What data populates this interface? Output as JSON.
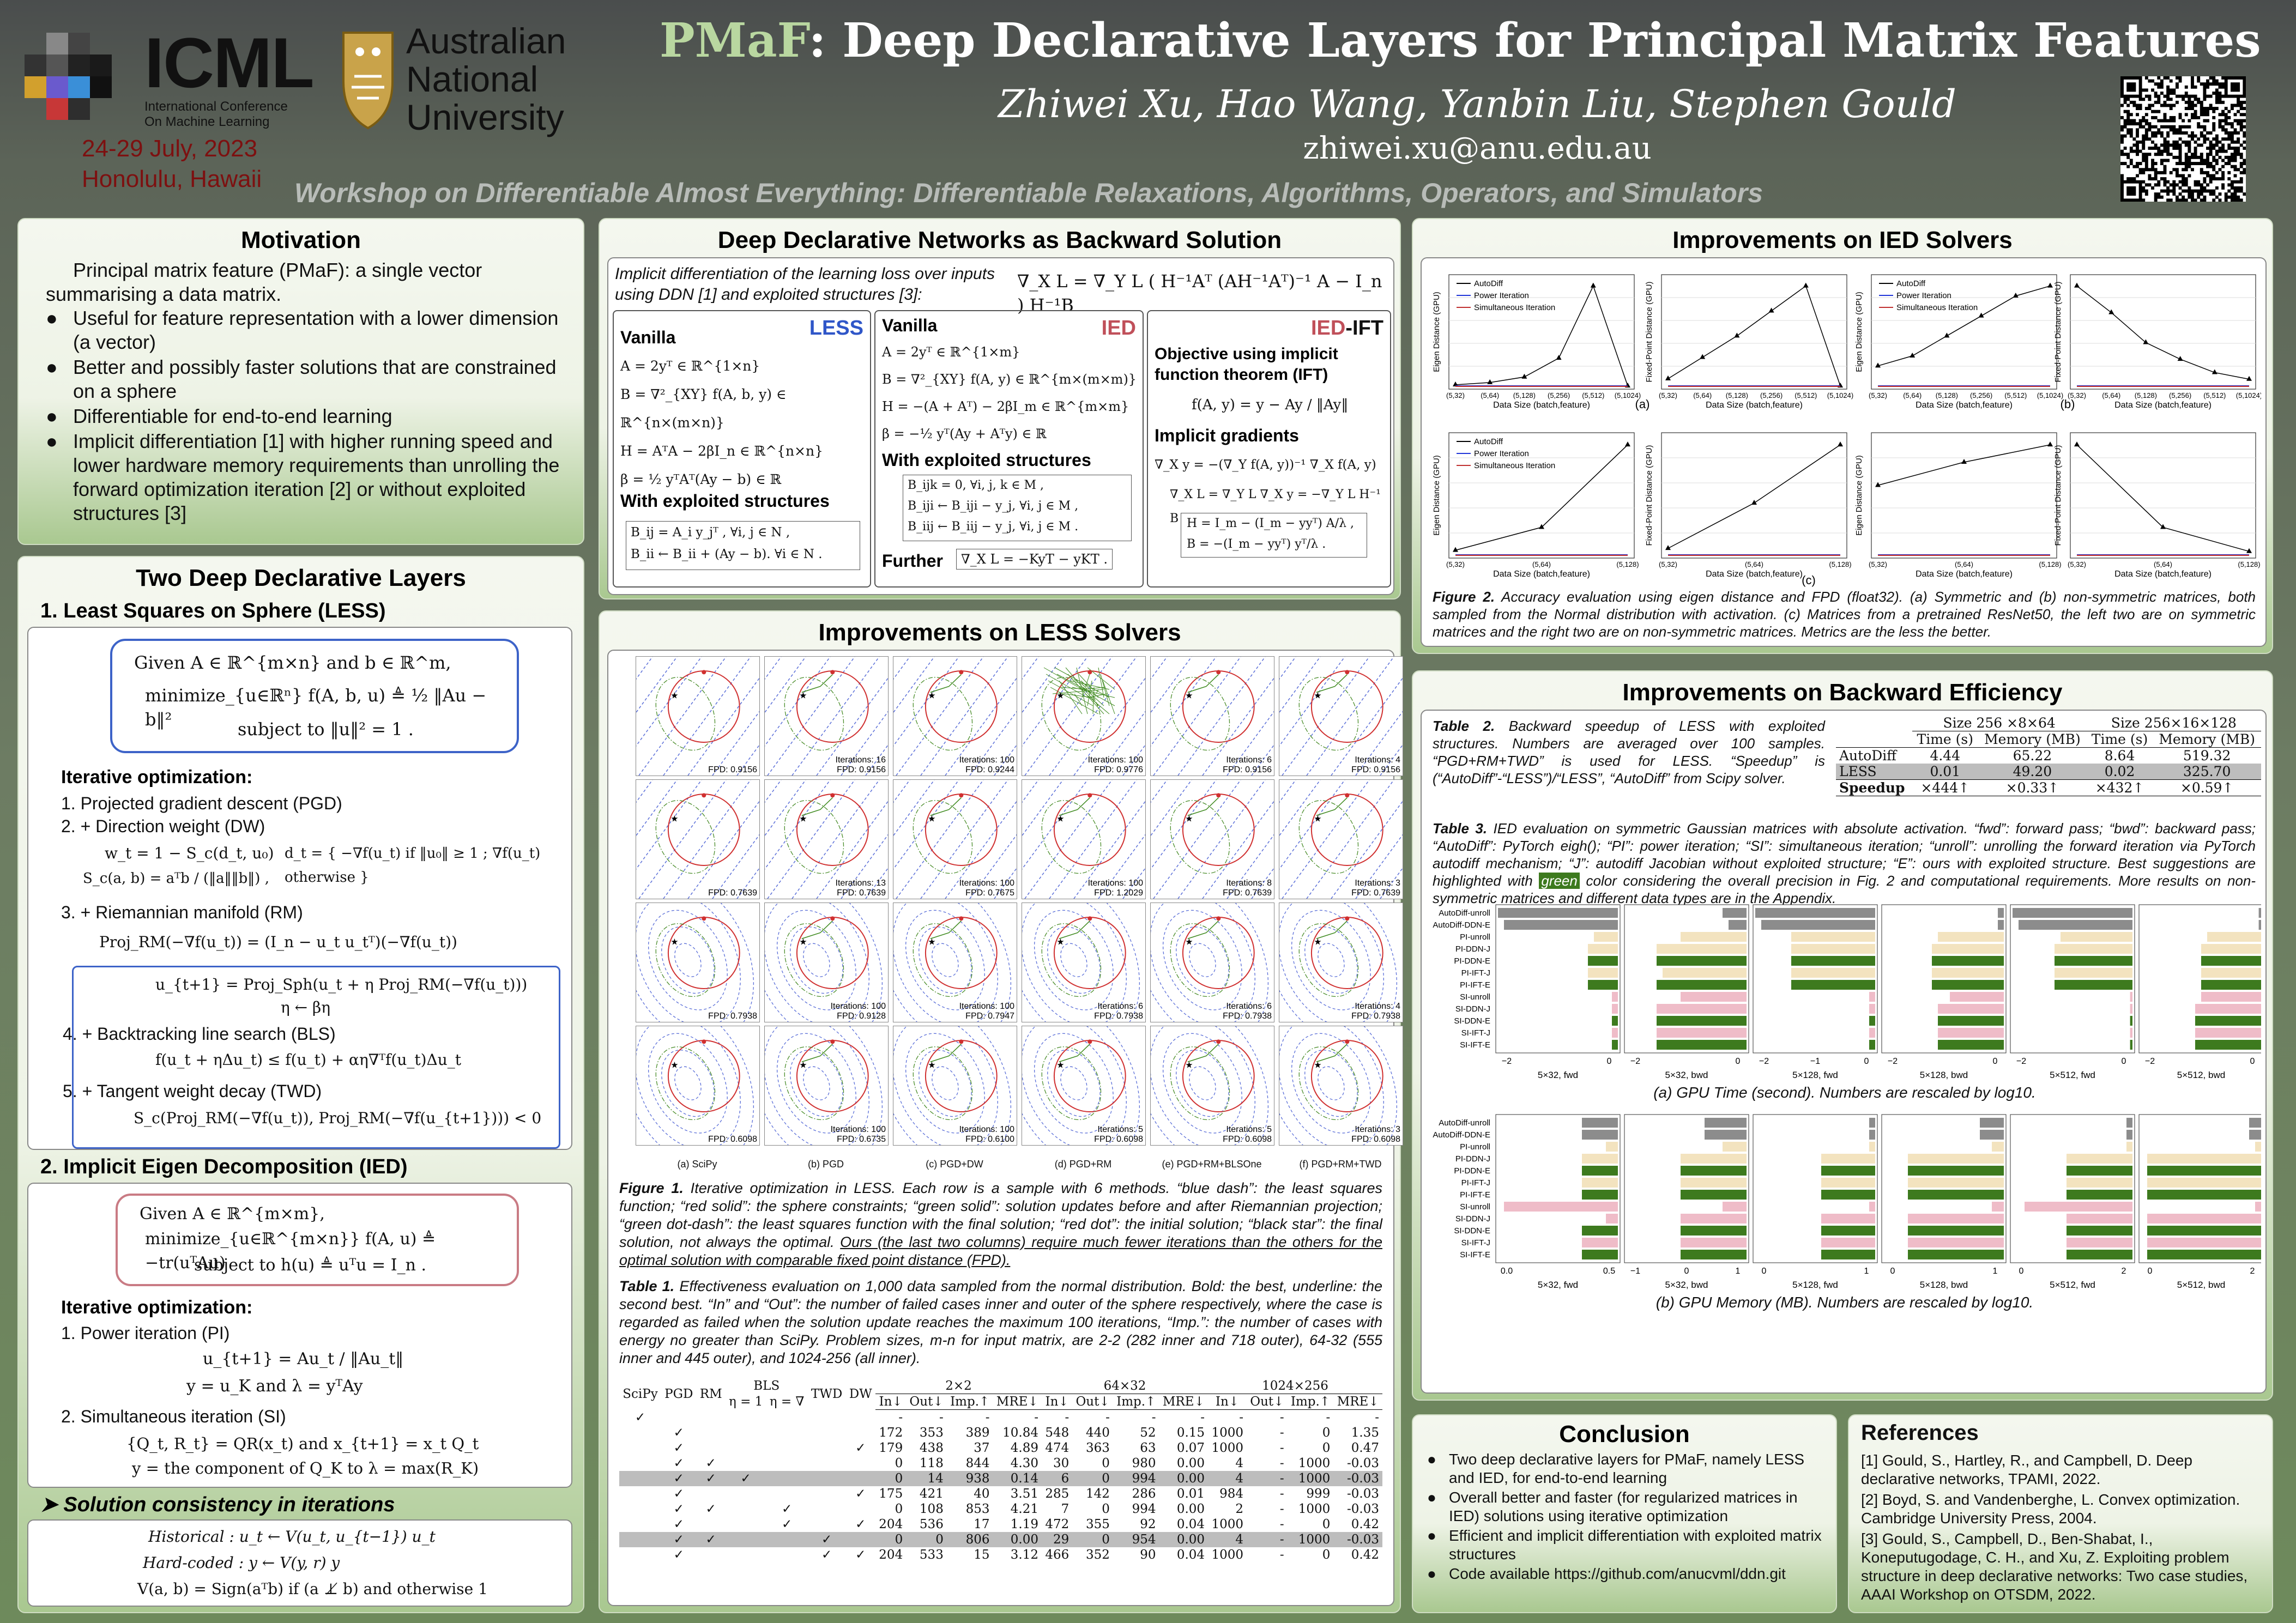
{
  "header": {
    "logo_icml_text": "ICML",
    "logo_icml_sub1": "International Conference",
    "logo_icml_sub2": "On Machine Learning",
    "logo_anu_1": "Australian",
    "logo_anu_2": "National",
    "logo_anu_3": "University",
    "date_line": "24-29 July, 2023",
    "place_line": "Honolulu, Hawaii",
    "title_accent": "PMaF",
    "title_rest": ": Deep Declarative Layers for Principal Matrix Features",
    "authors": "Zhiwei Xu, Hao Wang, Yanbin Liu, Stephen Gould",
    "email": "zhiwei.xu@anu.edu.au",
    "workshop": "Workshop on Differentiable Almost Everything: Differentiable Relaxations, Algorithms, Operators, and Simulators"
  },
  "motivation": {
    "title": "Motivation",
    "intro": "Principal matrix feature (PMaF): a single vector summarising a data matrix.",
    "bullets": [
      "Useful for feature representation with a lower dimension (a vector)",
      "Better and possibly faster solutions that are constrained on a sphere",
      "Differentiable for end-to-end learning",
      "Implicit differentiation [1] with higher running speed and lower hardware memory requirements than unrolling the forward optimization iteration [2] or without exploited structures [3]"
    ]
  },
  "two_layers": {
    "title": "Two Deep Declarative Layers",
    "less_heading": "1.  Least Squares on Sphere (LESS)",
    "less_given": "Given A ∈ ℝ^{m×n} and b ∈ ℝ^m,",
    "less_min": "minimize_{u∈ℝⁿ} f(A, b, u) ≜ ½ ‖Au − b‖²",
    "less_st": "subject to  ‖u‖² = 1 .",
    "iter_heading": "Iterative optimization:",
    "less_steps": [
      "1.  Projected gradient descent (PGD)",
      "2.  + Direction weight (DW)",
      "3.  + Riemannian manifold (RM)",
      "4.  + Backtracking line search (BLS)",
      "5.  + Tangent weight decay (TWD)"
    ],
    "eq_dw1": "w_t = 1 − S_c(d_t, u₀)",
    "eq_dw2": "S_c(a, b) = aᵀb / (‖a‖‖b‖) ,",
    "eq_dw3": "d_t = { −∇f(u_t)   if ‖u₀‖ ≥ 1 ;  ∇f(u_t)   otherwise }",
    "eq_rm": "Proj_RM(−∇f(u_t)) = (I_n − u_t u_tᵀ)(−∇f(u_t))",
    "eq_upd1": "u_{t+1} = Proj_Sph(u_t + η Proj_RM(−∇f(u_t)))",
    "eq_upd2": "η ← βη",
    "eq_bls": "f(u_t + ηΔu_t) ≤ f(u_t) + αη∇ᵀf(u_t)Δu_t",
    "eq_twd": "S_c(Proj_RM(−∇f(u_t)), Proj_RM(−∇f(u_{t+1}))) < 0",
    "ied_heading": "2. Implicit Eigen Decomposition (IED)",
    "ied_given": "Given A ∈ ℝ^{m×m},",
    "ied_min": "minimize_{u∈ℝ^{m×n}} f(A, u) ≜ −tr(uᵀAu)",
    "ied_st": "subject to   h(u) ≜ uᵀu = I_n .",
    "ied_steps": [
      "1.  Power iteration (PI)",
      "2.  Simultaneous iteration (SI)"
    ],
    "eq_pi1": "u_{t+1} = Au_t / ‖Au_t‖",
    "eq_pi2": "y = u_K    and    λ = yᵀAy",
    "eq_si1": "{Q_t, R_t} = QR(x_t)   and   x_{t+1} = x_t Q_t",
    "eq_si2": "y = the component of Q_K to λ = max(R_K)",
    "consistency_heading": "➤  Solution consistency in iterations",
    "eq_hist": "Historical :    u_t ← V(u_t, u_{t−1}) u_t",
    "eq_hard": "Hard-coded :    y ← V(y, r) y",
    "eq_v": "V(a, b) = Sign(aᵀb) if (a ⊥̸ b) and otherwise 1"
  },
  "ddn": {
    "title": "Deep Declarative Networks as Backward Solution",
    "intro": "Implicit differentiation of the learning loss over inputs using DDN [1] and exploited structures [3]:",
    "main_eq": "∇_X L = ∇_Y L ( H⁻¹Aᵀ (AH⁻¹Aᵀ)⁻¹ A − I_n ) H⁻¹B",
    "less_label": "LESS",
    "ied_label": "IED",
    "iedift_label_a": "IED",
    "iedift_label_b": "-IFT",
    "vanilla": "Vanilla",
    "less_eqs": [
      "A = 2yᵀ ∈ ℝ^{1×n}",
      "B = ∇²_{XY} f(A, b, y) ∈ ℝ^{n×(m×n)}",
      "H = AᵀA − 2βI_n ∈ ℝ^{n×n}",
      "β = ½ yᵀAᵀ(Ay − b) ∈ ℝ"
    ],
    "with_exploited": "With exploited structures",
    "less_struct": [
      "B_ij = A_i y_jᵀ ,   ∀i, j ∈ N ,",
      "B_ii ← B_ii + (Ay − b).   ∀i ∈ N ."
    ],
    "ied_eqs": [
      "A = 2yᵀ ∈ ℝ^{1×m}",
      "B = ∇²_{XY} f(A, y) ∈ ℝ^{m×(m×m)}",
      "H = −(A + Aᵀ) − 2βI_m ∈ ℝ^{m×m}",
      "β = −½ yᵀ(Ay + Aᵀy) ∈ ℝ"
    ],
    "ied_struct": [
      "B_ijk = 0,   ∀i, j, k ∈ M ,",
      "B_iji ← B_iji − y_j,   ∀i, j ∈ M ,",
      "B_iij ← B_iij − y_j,   ∀i, j ∈ M ."
    ],
    "further": "Further",
    "further_eq": "∇_X L = −KyT − yKT .",
    "ift_obj": "Objective using implicit function theorem (IFT)",
    "ift_eq1": "f(A, y) = y − Ay / ‖Ay‖",
    "ift_grad": "Implicit gradients",
    "ift_eq2": "∇_X y = −(∇_Y f(A, y))⁻¹ ∇_X f(A, y)",
    "ift_eq3": "∇_X L = ∇_Y L ∇_X y = −∇_Y L H⁻¹ B",
    "ift_eq4": "H = I_m − (I_m − yyᵀ) A/λ ,",
    "ift_eq5": "B = −(I_m − yyᵀ) yᵀ/λ ."
  },
  "less_solvers": {
    "title": "Improvements on LESS Solvers",
    "columns": [
      "(a) SciPy",
      "(b) PGD",
      "(c) PGD+DW",
      "(d) PGD+RM",
      "(e) PGD+RM+BLSOne",
      "(f) PGD+RM+TWD"
    ],
    "rows": [
      [
        "FPD: 0.9156",
        "Iterations: 16\nFPD: 0.9156",
        "Iterations: 100\nFPD: 0.9244",
        "Iterations: 100\nFPD: 0.9776",
        "Iterations: 6\nFPD: 0.9156",
        "Iterations: 4\nFPD: 0.9156"
      ],
      [
        "FPD: 0.7639",
        "Iterations: 13\nFPD: 0.7639",
        "Iterations: 100\nFPD: 0.7675",
        "Iterations: 100\nFPD: 1.2029",
        "Iterations: 8\nFPD: 0.7639",
        "Iterations: 3\nFPD: 0.7639"
      ],
      [
        "FPD: 0.7938",
        "Iterations: 100\nFPD: 0.9128",
        "Iterations: 100\nFPD: 0.7947",
        "Iterations: 6\nFPD: 0.7938",
        "Iterations: 6\nFPD: 0.7938",
        "Iterations: 4\nFPD: 0.7938"
      ],
      [
        "FPD: 0.6098",
        "Iterations: 100\nFPD: 0.6735",
        "Iterations: 100\nFPD: 0.6100",
        "Iterations: 5\nFPD: 0.6098",
        "Iterations: 5\nFPD: 0.6098",
        "Iterations: 3\nFPD: 0.6098"
      ]
    ],
    "fig1_caption_bold": "Figure 1.",
    "fig1_caption": " Iterative optimization in LESS. Each row is a sample with 6 methods. “blue dash”: the least squares function; “red solid”: the sphere constraints; “green solid”: solution updates before and after Riemannian projection; “green dot-dash”: the least squares function with the final solution; “red dot”: the initial solution; “black star”: the final solution, not always the optimal. ",
    "fig1_caption_u": "Ours (the last two columns) require much fewer iterations than the others for the optimal solution with comparable fixed point distance (FPD).",
    "tab1_caption_bold": "Table 1.",
    "tab1_caption": " Effectiveness evaluation on 1,000 data sampled from the normal distribution. Bold: the best, underline: the second best. “In” and “Out”: the number of failed cases inner and outer of the sphere respectively, where the case is regarded as failed when the solution update reaches the maximum 100 iterations, “Imp.”: the number of cases with energy no greater than SciPy. Problem sizes, m-n for input matrix, are 2-2 (282 inner and 718 outer), 64-32 (555 inner and 445 outer), and 1024-256 (all inner).",
    "table_head1": [
      "SciPy",
      "PGD",
      "RM",
      "BLS",
      "TWD",
      "DW",
      "2×2",
      "64×32",
      "1024×256"
    ],
    "table_bls_sub": [
      "η = 1",
      "η = ∇"
    ],
    "table_head2": [
      "In↓",
      "Out↓",
      "Imp.↑",
      "MRE↓",
      "In↓",
      "Out↓",
      "Imp.↑",
      "MRE↓",
      "In↓",
      "Out↓",
      "Imp.↑",
      "MRE↓"
    ],
    "table_rows": [
      {
        "checks": [
          "✓",
          "",
          "",
          "",
          "",
          "",
          ""
        ],
        "vals": [
          "-",
          "-",
          "-",
          "-",
          "-",
          "-",
          "-",
          "-",
          "-",
          "-",
          "-",
          "-"
        ],
        "gray": false
      },
      {
        "checks": [
          "",
          "✓",
          "",
          "",
          "",
          "",
          ""
        ],
        "vals": [
          "172",
          "353",
          "389",
          "10.84",
          "548",
          "440",
          "52",
          "0.15",
          "1000",
          "-",
          "0",
          "1.35"
        ],
        "gray": false
      },
      {
        "checks": [
          "",
          "✓",
          "",
          "",
          "",
          "",
          "✓"
        ],
        "vals": [
          "179",
          "438",
          "37",
          "4.89",
          "474",
          "363",
          "63",
          "0.07",
          "1000",
          "-",
          "0",
          "0.47"
        ],
        "gray": false
      },
      {
        "checks": [
          "",
          "✓",
          "✓",
          "",
          "",
          "",
          ""
        ],
        "vals": [
          "0",
          "118",
          "844",
          "4.30",
          "30",
          "0",
          "980",
          "0.00",
          "4",
          "-",
          "1000",
          "-0.03"
        ],
        "gray": false
      },
      {
        "checks": [
          "",
          "✓",
          "✓",
          "✓",
          "",
          "",
          ""
        ],
        "vals": [
          "0",
          "14",
          "938",
          "0.14",
          "6",
          "0",
          "994",
          "0.00",
          "4",
          "-",
          "1000",
          "-0.03"
        ],
        "gray": true
      },
      {
        "checks": [
          "",
          "✓",
          "",
          "",
          "",
          "",
          "✓"
        ],
        "vals": [
          "175",
          "421",
          "40",
          "3.51",
          "285",
          "142",
          "286",
          "0.01",
          "984",
          "-",
          "999",
          "-0.03"
        ],
        "gray": false
      },
      {
        "checks": [
          "",
          "✓",
          "✓",
          "",
          "✓",
          "",
          ""
        ],
        "vals": [
          "0",
          "108",
          "853",
          "4.21",
          "7",
          "0",
          "994",
          "0.00",
          "2",
          "-",
          "1000",
          "-0.03"
        ],
        "gray": false
      },
      {
        "checks": [
          "",
          "✓",
          "",
          "",
          "✓",
          "",
          "✓"
        ],
        "vals": [
          "204",
          "536",
          "17",
          "1.19",
          "472",
          "355",
          "92",
          "0.04",
          "1000",
          "-",
          "0",
          "0.42"
        ],
        "gray": false
      },
      {
        "checks": [
          "",
          "✓",
          "✓",
          "",
          "",
          "✓",
          ""
        ],
        "vals": [
          "0",
          "0",
          "806",
          "0.00",
          "29",
          "0",
          "954",
          "0.00",
          "4",
          "-",
          "1000",
          "-0.03"
        ],
        "gray": true
      },
      {
        "checks": [
          "",
          "✓",
          "",
          "",
          "",
          "✓",
          "✓"
        ],
        "vals": [
          "204",
          "533",
          "15",
          "3.12",
          "466",
          "352",
          "90",
          "0.04",
          "1000",
          "-",
          "0",
          "0.42"
        ],
        "gray": false
      }
    ]
  },
  "ied_solvers": {
    "title": "Improvements on IED Solvers",
    "legend": [
      "AutoDiff",
      "Power Iteration",
      "Simultaneous Iteration"
    ],
    "ylabel_eig": "Eigen Distance (GPU)",
    "ylabel_fpd": "Fixed-Point Distance (GPU)",
    "xlabel": "Data Size (batch,feature)",
    "ticks_6": [
      "(5,32)",
      "(5,64)",
      "(5,128)",
      "(5,256)",
      "(5,512)",
      "(5,1024)"
    ],
    "ticks_3": [
      "(5,32)",
      "(5,64)",
      "(5,128)"
    ],
    "panel_labels": [
      "(a)",
      "(b)",
      "(c)"
    ],
    "autodiff_a_eig": [
      0.1,
      0.3,
      0.8,
      2.5,
      9.0,
      0.0
    ],
    "autodiff_a_fpd": [
      0.2,
      0.8,
      1.4,
      2.1,
      2.8,
      0.0
    ],
    "autodiff_b_eig": [
      0.2,
      0.3,
      0.5,
      0.7,
      0.9,
      1.0
    ],
    "autodiff_b_fpd": [
      3.0,
      2.2,
      1.3,
      0.8,
      0.4,
      0.2
    ],
    "autodiff_c1_eig": [
      0.05,
      0.3,
      1.2
    ],
    "autodiff_c1_fpd": [
      0.1,
      0.8,
      1.7
    ],
    "autodiff_c2_eig": [
      0.6,
      0.8,
      0.95
    ],
    "autodiff_c2_fpd": [
      1.6,
      0.4,
      0.05
    ],
    "fig2_caption_bold": "Figure 2.",
    "fig2_caption": " Accuracy evaluation using eigen distance and FPD (float32). (a) Symmetric and (b) non-symmetric matrices, both sampled from the Normal distribution with activation. (c) Matrices from a pretrained ResNet50, the left two are on symmetric matrices and the right two are on non-symmetric matrices. Metrics are the less the better."
  },
  "backward": {
    "title": "Improvements on Backward Efficiency",
    "tab2_caption_bold": "Table 2.",
    "tab2_caption": " Backward speedup of LESS with exploited structures. Numbers are averaged over 100 samples. “PGD+RM+TWD” is used for LESS. “Speedup” is (“AutoDiff”-“LESS”)/“LESS”, “AutoDiff” from Scipy solver.",
    "tab2_size1": "Size 256 ×8×64",
    "tab2_size2": "Size 256×16×128",
    "tab2_cols": [
      "Time (s)",
      "Memory (MB)",
      "Time (s)",
      "Memory (MB)"
    ],
    "tab2_rows": [
      {
        "name": "AutoDiff",
        "vals": [
          "4.44",
          "65.22",
          "8.64",
          "519.32"
        ]
      },
      {
        "name": "LESS",
        "vals": [
          "0.01",
          "49.20",
          "0.02",
          "325.70"
        ]
      },
      {
        "name": "Speedup",
        "vals": [
          "×444↑",
          "×0.33↑",
          "×432↑",
          "×0.59↑"
        ]
      }
    ],
    "tab3_caption_bold": "Table 3.",
    "tab3_caption_a": " IED evaluation on symmetric Gaussian matrices with absolute activation. “fwd”: forward pass; “bwd”: backward pass; “AutoDiff”: PyTorch eigh(); “PI”: power iteration; “SI”: simultaneous iteration; “unroll”: unrolling the forward iteration via PyTorch autodiff mechanism; “J”: autodiff Jacobian without exploited structure; “E”: ours with exploited structure. Best suggestions are highlighted with ",
    "tab3_green": "green",
    "tab3_caption_b": " color considering the overall precision in Fig. 2 and computational requirements. More results on non-symmetric matrices and different data types are in the Appendix.",
    "bar_labels": [
      "AutoDiff-unroll",
      "AutoDiff-DDN-E",
      "PI-unroll",
      "PI-DDN-J",
      "PI-DDN-E",
      "PI-IFT-J",
      "PI-IFT-E",
      "SI-unroll",
      "SI-DDN-J",
      "SI-DDN-E",
      "SI-IFT-J",
      "SI-IFT-E"
    ],
    "bar_colors": [
      "#8c8c8c",
      "#8c8c8c",
      "#f3e3bf",
      "#f3e3bf",
      "#3d7a1e",
      "#f3e3bf",
      "#3d7a1e",
      "#efbcc8",
      "#efbcc8",
      "#3d7a1e",
      "#efbcc8",
      "#3d7a1e"
    ],
    "time_groups": [
      {
        "label": "5×32, fwd",
        "ticks": [
          "−2",
          "0"
        ],
        "vals": [
          1.0,
          0.95,
          0.2,
          0.25,
          0.25,
          0.25,
          0.25,
          0.05,
          0.05,
          0.05,
          0.05,
          0.05
        ]
      },
      {
        "label": "5×32, bwd",
        "ticks": [
          "−2",
          "0"
        ],
        "vals": [
          0.2,
          0.15,
          0.55,
          0.75,
          0.75,
          0.7,
          0.75,
          0.55,
          0.75,
          0.75,
          0.75,
          0.75
        ]
      },
      {
        "label": "5×128, fwd",
        "ticks": [
          "−2",
          "−1",
          "0"
        ],
        "vals": [
          1.0,
          0.95,
          0.7,
          0.7,
          0.7,
          0.7,
          0.7,
          0.05,
          0.05,
          0.05,
          0.05,
          0.05
        ]
      },
      {
        "label": "5×128, bwd",
        "ticks": [
          "−2",
          "0"
        ],
        "vals": [
          0.05,
          0.05,
          0.55,
          0.6,
          0.6,
          0.6,
          0.6,
          0.45,
          0.55,
          0.55,
          0.55,
          0.55
        ]
      },
      {
        "label": "5×512, fwd",
        "ticks": [
          "−2",
          "0"
        ],
        "vals": [
          1.0,
          0.95,
          0.6,
          0.65,
          0.65,
          0.65,
          0.65,
          0.02,
          0.02,
          0.02,
          0.02,
          0.02
        ]
      },
      {
        "label": "5×512, bwd",
        "ticks": [
          "−2",
          "0"
        ],
        "vals": [
          0.02,
          0.02,
          0.45,
          0.5,
          0.5,
          0.5,
          0.5,
          0.5,
          0.55,
          0.55,
          0.55,
          0.55
        ]
      }
    ],
    "time_caption": "(a) GPU Time (second). Numbers are rescaled by log10.",
    "mem_groups": [
      {
        "label": "5×32, fwd",
        "ticks": [
          "0.0",
          "0.5"
        ],
        "vals": [
          0.3,
          0.3,
          0.1,
          0.3,
          0.3,
          0.3,
          0.3,
          0.95,
          0.1,
          0.3,
          0.3,
          0.3
        ]
      },
      {
        "label": "5×32, bwd",
        "ticks": [
          "−1",
          "0",
          "1"
        ],
        "vals": [
          0.35,
          0.35,
          0.2,
          0.55,
          0.55,
          0.55,
          0.55,
          0.2,
          0.55,
          0.55,
          0.55,
          0.55
        ]
      },
      {
        "label": "5×128, fwd",
        "ticks": [
          "0",
          "1"
        ],
        "vals": [
          0.05,
          0.05,
          0.05,
          0.45,
          0.45,
          0.45,
          0.45,
          0.05,
          0.45,
          0.45,
          0.45,
          0.45
        ]
      },
      {
        "label": "5×128, bwd",
        "ticks": [
          "0",
          "1"
        ],
        "vals": [
          0.2,
          0.2,
          0.1,
          0.8,
          0.8,
          0.8,
          0.8,
          0.1,
          0.8,
          0.8,
          0.8,
          0.8
        ]
      },
      {
        "label": "5×512, fwd",
        "ticks": [
          "0",
          "2"
        ],
        "vals": [
          0.05,
          0.05,
          0.05,
          0.55,
          0.55,
          0.55,
          0.55,
          0.9,
          0.55,
          0.55,
          0.55,
          0.55
        ]
      },
      {
        "label": "5×512, bwd",
        "ticks": [
          "0",
          "2"
        ],
        "vals": [
          0.1,
          0.1,
          0.05,
          0.95,
          0.95,
          0.95,
          0.95,
          0.05,
          0.95,
          0.95,
          0.95,
          0.95
        ]
      }
    ],
    "mem_caption": "(b) GPU Memory (MB). Numbers are rescaled by log10."
  },
  "conclusion": {
    "title": "Conclusion",
    "bullets": [
      "Two deep declarative layers for PMaF, namely LESS and IED, for end-to-end learning",
      "Overall better and faster (for regularized matrices in IED) solutions using iterative optimization",
      "Efficient and implicit differentiation with exploited matrix structures",
      "Code available https://github.com/anucvml/ddn.git"
    ]
  },
  "references": {
    "title": "References",
    "items": [
      "[1] Gould, S., Hartley, R., and Campbell, D. Deep declarative networks, TPAMI, 2022.",
      "[2] Boyd, S. and Vandenberghe, L. Convex optimization. Cambridge University Press, 2004.",
      "[3] Gould, S., Campbell, D., Ben-Shabat, I., Koneputugodage, C. H., and Xu, Z. Exploiting problem structure in deep declarative networks: Two case studies, AAAI Workshop on OTSDM, 2022."
    ]
  }
}
